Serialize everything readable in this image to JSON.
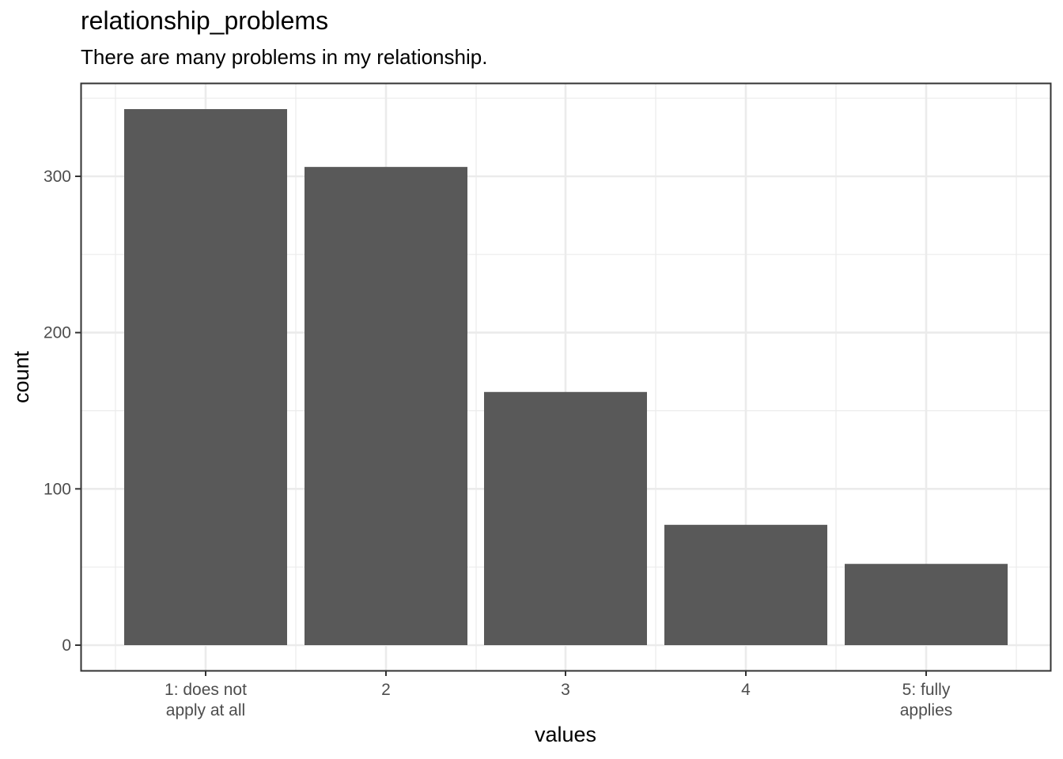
{
  "chart_data": {
    "type": "bar",
    "title": "relationship_problems",
    "subtitle": "There are many problems in my relationship.",
    "xlabel": "values",
    "ylabel": "count",
    "categories": [
      "1: does not\napply at all",
      "2",
      "3",
      "4",
      "5: fully\napplies"
    ],
    "values": [
      343,
      306,
      162,
      77,
      52
    ],
    "ylim": [
      0,
      343
    ],
    "yticks": [
      0,
      100,
      200,
      300
    ],
    "grid": true,
    "bar_color": "#595959",
    "theme": "bw"
  }
}
